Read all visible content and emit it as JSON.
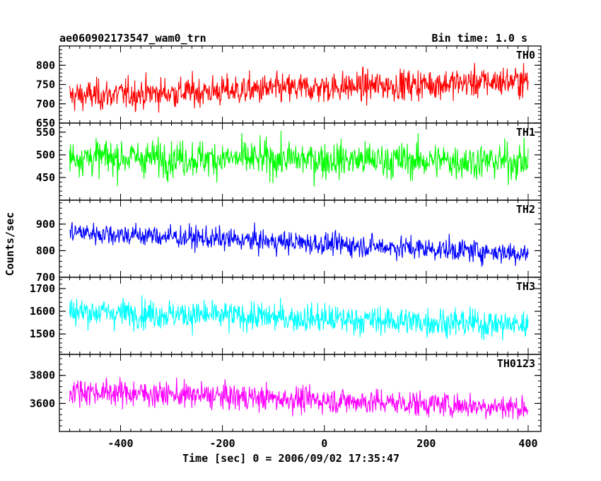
{
  "header": {
    "title_left": "ae060902173547_wam0_trn",
    "title_right": "Bin time: 1.0 s"
  },
  "axes": {
    "xlabel": "Time [sec] 0 = 2006/09/02 17:35:47",
    "ylabel": "Counts/sec"
  },
  "chart_data": {
    "type": "line",
    "x": {
      "start": -500,
      "end": 400,
      "step": 1,
      "unit": "sec",
      "ticks": [
        -400,
        -200,
        0,
        200,
        400
      ],
      "xlim": [
        -520,
        425
      ]
    },
    "bin_time_s": 1.0,
    "panels": [
      {
        "name": "TH0",
        "color": "#ff0000",
        "ylim": [
          650,
          850
        ],
        "yticks": [
          650,
          700,
          750,
          800
        ],
        "trend": [
          720,
          760
        ],
        "noise_sd": 28
      },
      {
        "name": "TH1",
        "color": "#00ff00",
        "ylim": [
          400,
          570
        ],
        "yticks": [
          450,
          500,
          550
        ],
        "trend": [
          495,
          485
        ],
        "noise_sd": 28
      },
      {
        "name": "TH2",
        "color": "#0000ff",
        "ylim": [
          700,
          990
        ],
        "yticks": [
          700,
          800,
          900
        ],
        "trend": [
          870,
          790
        ],
        "noise_sd": 30
      },
      {
        "name": "TH3",
        "color": "#00ffff",
        "ylim": [
          1410,
          1750
        ],
        "yticks": [
          1500,
          1600,
          1700
        ],
        "trend": [
          1600,
          1540
        ],
        "noise_sd": 45
      },
      {
        "name": "TH0123",
        "color": "#ff00ff",
        "ylim": [
          3400,
          3950
        ],
        "yticks": [
          3600,
          3800
        ],
        "trend": [
          3690,
          3570
        ],
        "noise_sd": 65
      }
    ]
  }
}
